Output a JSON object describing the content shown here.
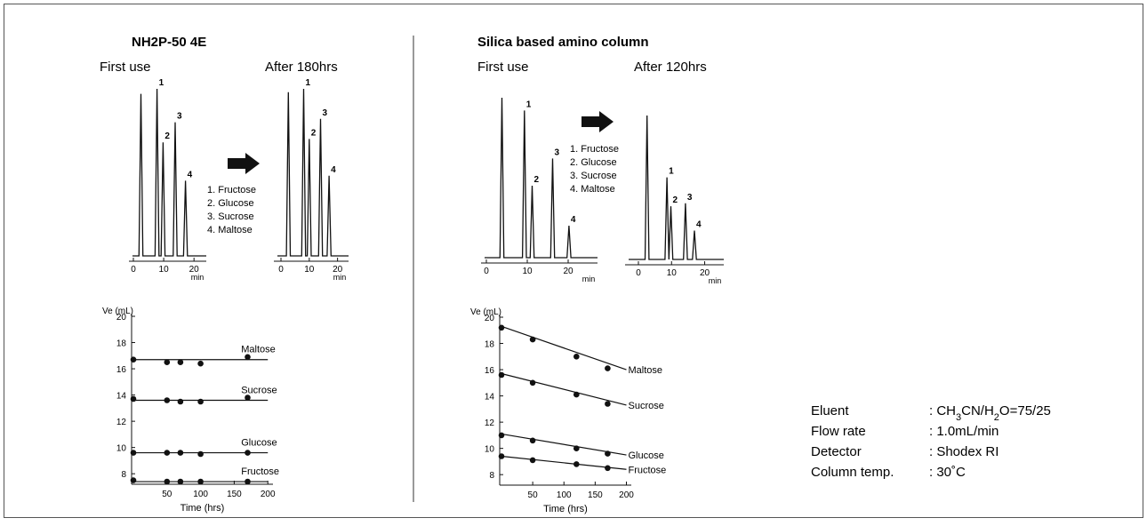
{
  "left_panel": {
    "title": "NH2P-50 4E",
    "before_label": "First use",
    "after_label": "After 180hrs"
  },
  "right_panel": {
    "title": "Silica based amino column",
    "before_label": "First use",
    "after_label": "After 120hrs"
  },
  "peak_legend": [
    "1. Fructose",
    "2. Glucose",
    "3. Sucrose",
    "4. Maltose"
  ],
  "conditions": [
    {
      "label": "Eluent",
      "value_html": ": CH<tspan baseline-shift=\"sub\" font-size=\"11\">3</tspan>CN/H<tspan baseline-shift=\"sub\" font-size=\"11\">2</tspan>O=75/25",
      "value": ": CH3CN/H2O=75/25"
    },
    {
      "label": "Flow rate",
      "value": ": 1.0mL/min"
    },
    {
      "label": "Detector",
      "value": ": Shodex RI"
    },
    {
      "label": "Column temp.",
      "value": ": 30˚C"
    }
  ],
  "chart_data": [
    {
      "id": "nh2p-first",
      "type": "line",
      "title": "First use",
      "xlabel": "min",
      "xlim": [
        0,
        22
      ],
      "xticks": [
        0,
        10,
        20
      ],
      "peaks": [
        {
          "label": "",
          "x": 2.5,
          "h": 0.97
        },
        {
          "label": "1",
          "x": 7.8,
          "h": 1.0
        },
        {
          "label": "2",
          "x": 9.8,
          "h": 0.68
        },
        {
          "label": "3",
          "x": 13.8,
          "h": 0.8
        },
        {
          "label": "4",
          "x": 17.2,
          "h": 0.45
        }
      ]
    },
    {
      "id": "nh2p-after",
      "type": "line",
      "title": "After 180hrs",
      "xlabel": "min",
      "xlim": [
        0,
        22
      ],
      "xticks": [
        0,
        10,
        20
      ],
      "peaks": [
        {
          "label": "",
          "x": 2.6,
          "h": 0.98
        },
        {
          "label": "1",
          "x": 8.0,
          "h": 1.0
        },
        {
          "label": "2",
          "x": 10.0,
          "h": 0.7
        },
        {
          "label": "3",
          "x": 14.0,
          "h": 0.82
        },
        {
          "label": "4",
          "x": 17.0,
          "h": 0.48
        }
      ]
    },
    {
      "id": "silica-first",
      "type": "line",
      "title": "First use",
      "xlabel": "min",
      "xlim": [
        0,
        25
      ],
      "xticks": [
        0,
        10,
        20
      ],
      "peaks": [
        {
          "label": "",
          "x": 3.8,
          "h": 1.0
        },
        {
          "label": "1",
          "x": 9.3,
          "h": 0.92
        },
        {
          "label": "2",
          "x": 11.2,
          "h": 0.45
        },
        {
          "label": "3",
          "x": 16.2,
          "h": 0.62
        },
        {
          "label": "4",
          "x": 20.2,
          "h": 0.2
        }
      ]
    },
    {
      "id": "silica-after",
      "type": "line",
      "title": "After 120hrs",
      "xlabel": "min",
      "xlim": [
        0,
        22
      ],
      "xticks": [
        0,
        10,
        20
      ],
      "peaks": [
        {
          "label": "",
          "x": 2.6,
          "h": 1.0
        },
        {
          "label": "1",
          "x": 8.6,
          "h": 0.57
        },
        {
          "label": "2",
          "x": 9.8,
          "h": 0.37
        },
        {
          "label": "3",
          "x": 14.2,
          "h": 0.39
        },
        {
          "label": "4",
          "x": 16.9,
          "h": 0.2
        }
      ]
    },
    {
      "id": "nh2p-ve",
      "type": "scatter",
      "xlabel": "Time (hrs)",
      "ylabel": "Ve (mL)",
      "xlim": [
        0,
        205
      ],
      "ylim": [
        7.2,
        20
      ],
      "xticks": [
        50,
        100,
        150,
        200
      ],
      "yticks": [
        8,
        10,
        12,
        14,
        16,
        18,
        20
      ],
      "series": [
        {
          "name": "Maltose",
          "x": [
            0,
            50,
            70,
            100,
            170
          ],
          "y": [
            16.7,
            16.5,
            16.5,
            16.4,
            16.9
          ],
          "fit": [
            16.7,
            16.7
          ]
        },
        {
          "name": "Sucrose",
          "x": [
            0,
            50,
            70,
            100,
            170
          ],
          "y": [
            13.7,
            13.6,
            13.5,
            13.5,
            13.8
          ],
          "fit": [
            13.6,
            13.6
          ]
        },
        {
          "name": "Glucose",
          "x": [
            0,
            50,
            70,
            100,
            170
          ],
          "y": [
            9.6,
            9.6,
            9.6,
            9.5,
            9.6
          ],
          "fit": [
            9.6,
            9.6
          ]
        },
        {
          "name": "Fructose",
          "x": [
            0,
            50,
            70,
            100,
            170
          ],
          "y": [
            7.5,
            7.4,
            7.4,
            7.4,
            7.4
          ],
          "fit": [
            7.4,
            7.4
          ]
        }
      ]
    },
    {
      "id": "silica-ve",
      "type": "scatter",
      "xlabel": "Time (hrs)",
      "ylabel": "Ve (mL)",
      "xlim": [
        0,
        205
      ],
      "ylim": [
        7.2,
        20
      ],
      "xticks": [
        50,
        100,
        150,
        200
      ],
      "yticks": [
        8,
        10,
        12,
        14,
        16,
        18,
        20
      ],
      "series": [
        {
          "name": "Maltose",
          "x": [
            0,
            50,
            120,
            170
          ],
          "y": [
            19.2,
            18.3,
            17.0,
            16.1
          ],
          "fit": [
            19.3,
            16.0
          ]
        },
        {
          "name": "Sucrose",
          "x": [
            0,
            50,
            120,
            170
          ],
          "y": [
            15.6,
            15.0,
            14.1,
            13.4
          ],
          "fit": [
            15.7,
            13.3
          ]
        },
        {
          "name": "Glucose",
          "x": [
            0,
            50,
            120,
            170
          ],
          "y": [
            11.0,
            10.6,
            10.0,
            9.6
          ],
          "fit": [
            11.1,
            9.5
          ]
        },
        {
          "name": "Fructose",
          "x": [
            0,
            50,
            120,
            170
          ],
          "y": [
            9.4,
            9.1,
            8.8,
            8.5
          ],
          "fit": [
            9.4,
            8.4
          ]
        }
      ]
    }
  ]
}
